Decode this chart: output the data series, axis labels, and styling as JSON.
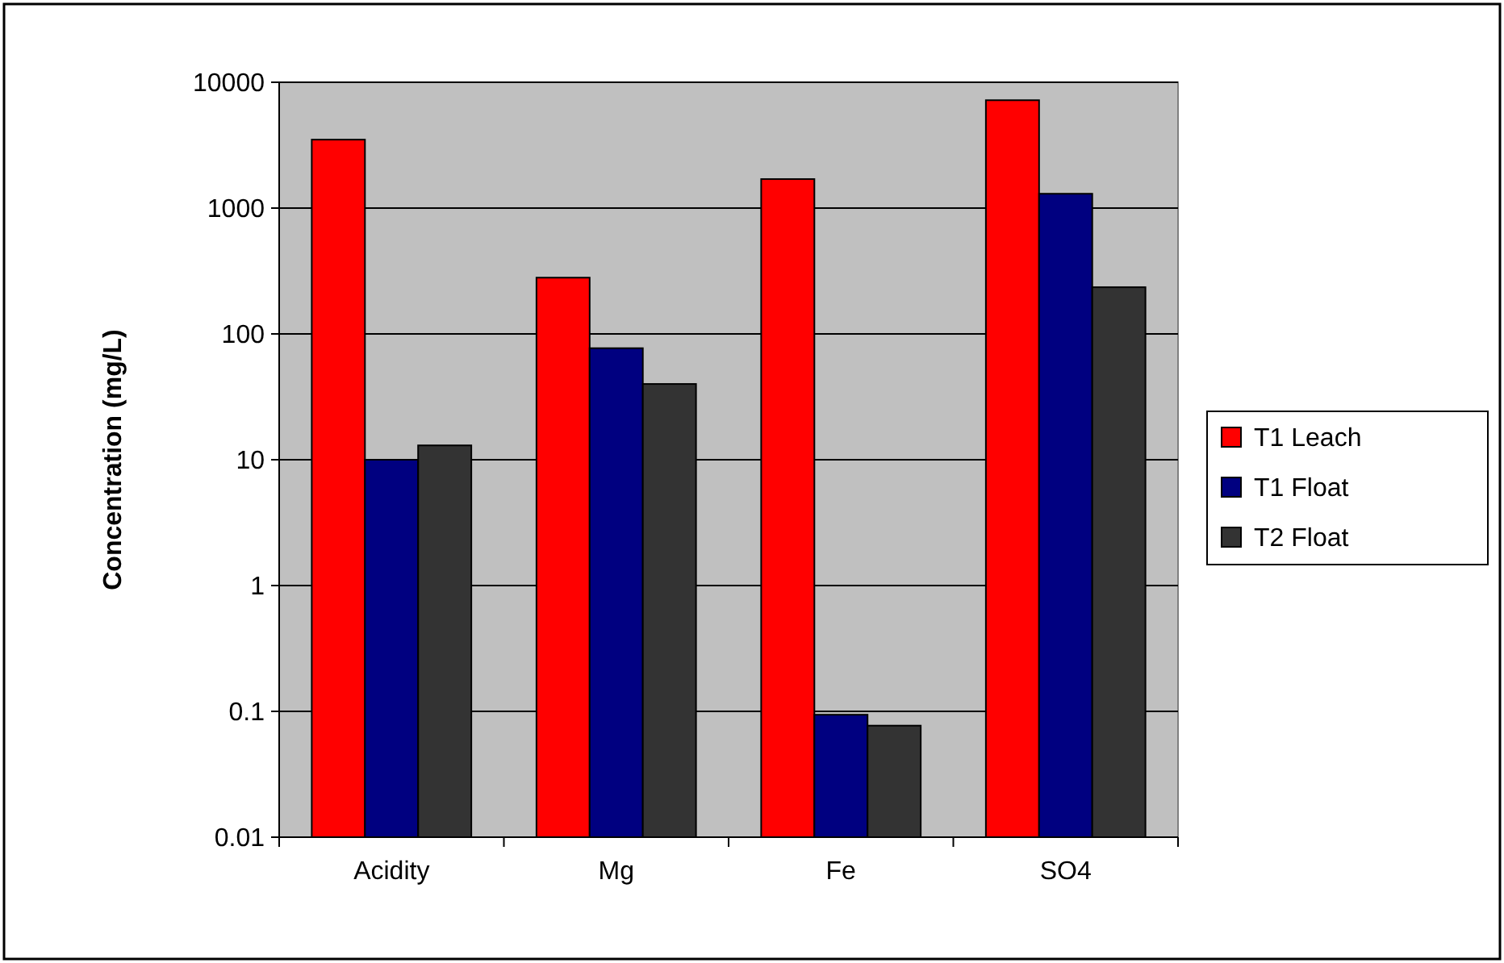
{
  "chart_data": {
    "type": "bar",
    "ylabel": "Concentration (mg/L)",
    "categories": [
      "Acidity",
      "Mg",
      "Fe",
      "SO4"
    ],
    "series": [
      {
        "name": "T1 Leach",
        "color": "#ff0000",
        "values": [
          3500,
          280,
          1700,
          7200
        ]
      },
      {
        "name": "T1 Float",
        "color": "#000080",
        "values": [
          10,
          77,
          0.094,
          1300
        ]
      },
      {
        "name": "T2 Float",
        "color": "#333333",
        "values": [
          13,
          40,
          0.077,
          235
        ]
      }
    ],
    "log": true,
    "ylim": [
      0.01,
      10000
    ],
    "yticks": [
      0.01,
      0.1,
      1,
      10,
      100,
      1000,
      10000
    ],
    "grid": "y",
    "legend": "right"
  }
}
